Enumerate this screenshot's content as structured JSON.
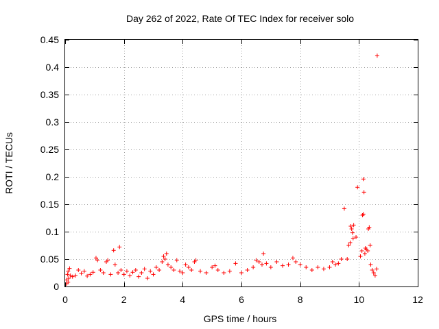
{
  "chart_data": {
    "type": "scatter",
    "title": "Day 262 of 2022, Rate Of TEC Index for receiver solo",
    "xlabel": "GPS time / hours",
    "ylabel": "ROTI / TECUs",
    "xlim": [
      0,
      12
    ],
    "ylim": [
      0,
      0.45
    ],
    "xticks": [
      "0",
      "2",
      "4",
      "6",
      "8",
      "10",
      "12"
    ],
    "yticks": [
      "0",
      "0.05",
      "0.1",
      "0.15",
      "0.2",
      "0.25",
      "0.3",
      "0.35",
      "0.4",
      "0.45"
    ],
    "grid": true,
    "marker": "+",
    "color": "#ff0000",
    "series": [
      {
        "points": [
          [
            0.05,
            0.012
          ],
          [
            0.08,
            0.022
          ],
          [
            0.1,
            0.028
          ],
          [
            0.12,
            0.015
          ],
          [
            0.15,
            0.033
          ],
          [
            0.18,
            0.02
          ],
          [
            0.05,
            0.005
          ],
          [
            0.1,
            0.008
          ],
          [
            0.25,
            0.018
          ],
          [
            0.35,
            0.02
          ],
          [
            0.45,
            0.03
          ],
          [
            0.55,
            0.024
          ],
          [
            0.65,
            0.028
          ],
          [
            0.75,
            0.019
          ],
          [
            0.85,
            0.022
          ],
          [
            0.95,
            0.026
          ],
          [
            1.05,
            0.052
          ],
          [
            1.1,
            0.048
          ],
          [
            1.2,
            0.03
          ],
          [
            1.3,
            0.025
          ],
          [
            1.4,
            0.045
          ],
          [
            1.45,
            0.048
          ],
          [
            1.55,
            0.022
          ],
          [
            1.65,
            0.066
          ],
          [
            1.7,
            0.04
          ],
          [
            1.8,
            0.025
          ],
          [
            1.85,
            0.072
          ],
          [
            1.9,
            0.03
          ],
          [
            2.0,
            0.022
          ],
          [
            2.1,
            0.028
          ],
          [
            2.2,
            0.02
          ],
          [
            2.3,
            0.026
          ],
          [
            2.4,
            0.03
          ],
          [
            2.5,
            0.018
          ],
          [
            2.6,
            0.025
          ],
          [
            2.7,
            0.032
          ],
          [
            2.8,
            0.015
          ],
          [
            2.9,
            0.028
          ],
          [
            3.0,
            0.022
          ],
          [
            3.1,
            0.035
          ],
          [
            3.2,
            0.03
          ],
          [
            3.3,
            0.045
          ],
          [
            3.35,
            0.055
          ],
          [
            3.4,
            0.05
          ],
          [
            3.45,
            0.06
          ],
          [
            3.5,
            0.04
          ],
          [
            3.6,
            0.035
          ],
          [
            3.7,
            0.03
          ],
          [
            3.8,
            0.048
          ],
          [
            3.9,
            0.028
          ],
          [
            4.0,
            0.025
          ],
          [
            4.1,
            0.04
          ],
          [
            4.2,
            0.035
          ],
          [
            4.3,
            0.03
          ],
          [
            4.4,
            0.045
          ],
          [
            4.45,
            0.048
          ],
          [
            4.6,
            0.028
          ],
          [
            4.8,
            0.025
          ],
          [
            5.0,
            0.035
          ],
          [
            5.1,
            0.038
          ],
          [
            5.2,
            0.03
          ],
          [
            5.4,
            0.025
          ],
          [
            5.6,
            0.028
          ],
          [
            5.8,
            0.042
          ],
          [
            6.0,
            0.025
          ],
          [
            6.2,
            0.03
          ],
          [
            6.4,
            0.035
          ],
          [
            6.5,
            0.048
          ],
          [
            6.6,
            0.045
          ],
          [
            6.7,
            0.04
          ],
          [
            6.75,
            0.06
          ],
          [
            6.85,
            0.042
          ],
          [
            7.0,
            0.035
          ],
          [
            7.2,
            0.045
          ],
          [
            7.4,
            0.038
          ],
          [
            7.6,
            0.04
          ],
          [
            7.75,
            0.052
          ],
          [
            7.85,
            0.045
          ],
          [
            8.0,
            0.04
          ],
          [
            8.2,
            0.035
          ],
          [
            8.4,
            0.03
          ],
          [
            8.6,
            0.035
          ],
          [
            8.8,
            0.032
          ],
          [
            9.0,
            0.035
          ],
          [
            9.1,
            0.045
          ],
          [
            9.2,
            0.04
          ],
          [
            9.3,
            0.042
          ],
          [
            9.4,
            0.05
          ],
          [
            9.5,
            0.142
          ],
          [
            9.6,
            0.05
          ],
          [
            9.65,
            0.075
          ],
          [
            9.7,
            0.08
          ],
          [
            9.72,
            0.11
          ],
          [
            9.75,
            0.105
          ],
          [
            9.78,
            0.098
          ],
          [
            9.8,
            0.088
          ],
          [
            9.82,
            0.112
          ],
          [
            9.9,
            0.09
          ],
          [
            9.95,
            0.181
          ],
          [
            10.05,
            0.055
          ],
          [
            10.1,
            0.065
          ],
          [
            10.12,
            0.13
          ],
          [
            10.15,
            0.132
          ],
          [
            10.15,
            0.196
          ],
          [
            10.17,
            0.172
          ],
          [
            10.2,
            0.06
          ],
          [
            10.22,
            0.07
          ],
          [
            10.25,
            0.068
          ],
          [
            10.3,
            0.065
          ],
          [
            10.32,
            0.105
          ],
          [
            10.35,
            0.108
          ],
          [
            10.38,
            0.075
          ],
          [
            10.4,
            0.04
          ],
          [
            10.45,
            0.03
          ],
          [
            10.5,
            0.025
          ],
          [
            10.55,
            0.02
          ],
          [
            10.6,
            0.032
          ],
          [
            10.62,
            0.421
          ]
        ]
      }
    ]
  }
}
